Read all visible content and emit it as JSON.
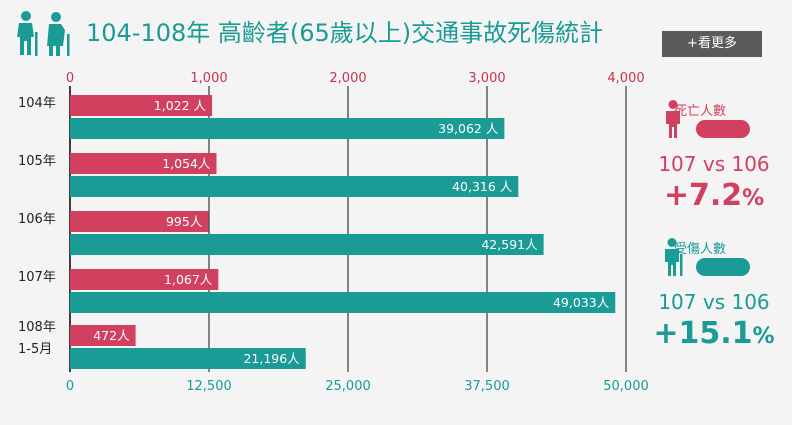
{
  "header": {
    "title": "104-108年 高齡者(65歲以上)交通事故死傷統計",
    "more_label": "+看更多"
  },
  "colors": {
    "death": "#d1415f",
    "injury": "#1a9b95"
  },
  "chart_data": {
    "type": "bar",
    "orientation": "horizontal",
    "categories": [
      [
        "104年"
      ],
      [
        "105年"
      ],
      [
        "106年"
      ],
      [
        "107年"
      ],
      [
        "108年",
        "1-5月"
      ]
    ],
    "series": [
      {
        "axis": "top",
        "color": "#d1415f",
        "values": [
          1022,
          1054,
          995,
          1067,
          472
        ],
        "labels": [
          "1,022 人",
          "1,054人",
          "995人",
          "1,067人",
          "472人"
        ]
      },
      {
        "axis": "bottom",
        "color": "#1a9b95",
        "values": [
          39062,
          40316,
          42591,
          49033,
          21196
        ],
        "labels": [
          "39,062 人",
          "40,316 人",
          "42,591人",
          "49,033人",
          "21,196人"
        ]
      }
    ],
    "top_axis": {
      "range": [
        0,
        4000
      ],
      "ticks": [
        "0",
        "1,000",
        "2,000",
        "3,000",
        "4,000"
      ]
    },
    "bottom_axis": {
      "range": [
        0,
        50000
      ],
      "ticks": [
        "0",
        "12,500",
        "25,000",
        "37,500",
        "50,000"
      ]
    },
    "grid": true
  },
  "stats": {
    "death": {
      "label": "死亡人數",
      "compare": "107 vs 106",
      "value": "+7.2",
      "unit": "%"
    },
    "injury": {
      "label": "受傷人數",
      "compare": "107 vs 106",
      "value": "+15.1",
      "unit": "%"
    }
  }
}
